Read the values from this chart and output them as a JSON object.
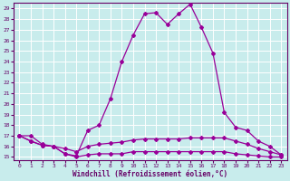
{
  "xlabel": "Windchill (Refroidissement éolien,°C)",
  "bg_color": "#c8ecec",
  "grid_color": "#ffffff",
  "line_color": "#990099",
  "xlim": [
    -0.5,
    23.5
  ],
  "ylim": [
    14.7,
    29.5
  ],
  "yticks": [
    15,
    16,
    17,
    18,
    19,
    20,
    21,
    22,
    23,
    24,
    25,
    26,
    27,
    28,
    29
  ],
  "xticks": [
    0,
    1,
    2,
    3,
    4,
    5,
    6,
    7,
    8,
    9,
    10,
    11,
    12,
    13,
    14,
    15,
    16,
    17,
    18,
    19,
    20,
    21,
    22,
    23
  ],
  "line1_x": [
    0,
    1,
    2,
    3,
    4,
    5,
    6,
    7,
    8,
    9,
    10,
    11,
    12,
    13,
    14,
    15,
    16,
    17,
    18,
    19,
    20,
    21,
    22,
    23
  ],
  "line1_y": [
    17.0,
    17.0,
    16.2,
    16.0,
    15.3,
    15.1,
    17.5,
    18.0,
    20.5,
    24.0,
    26.5,
    28.5,
    28.6,
    27.5,
    28.5,
    29.4,
    27.2,
    24.8,
    19.2,
    17.8,
    17.5,
    16.5,
    16.0,
    15.2
  ],
  "line2_x": [
    0,
    1,
    2,
    3,
    4,
    5,
    6,
    7,
    8,
    9,
    10,
    11,
    12,
    13,
    14,
    15,
    16,
    17,
    18,
    19,
    20,
    21,
    22,
    23
  ],
  "line2_y": [
    17.0,
    16.5,
    16.1,
    16.0,
    15.8,
    15.5,
    16.0,
    16.2,
    16.3,
    16.4,
    16.6,
    16.7,
    16.7,
    16.7,
    16.7,
    16.8,
    16.8,
    16.8,
    16.8,
    16.5,
    16.2,
    15.8,
    15.5,
    15.2
  ],
  "line3_x": [
    0,
    1,
    2,
    3,
    4,
    5,
    6,
    7,
    8,
    9,
    10,
    11,
    12,
    13,
    14,
    15,
    16,
    17,
    18,
    19,
    20,
    21,
    22,
    23
  ],
  "line3_y": [
    17.0,
    16.5,
    16.1,
    16.0,
    15.3,
    15.0,
    15.2,
    15.3,
    15.3,
    15.3,
    15.5,
    15.5,
    15.5,
    15.5,
    15.5,
    15.5,
    15.5,
    15.5,
    15.5,
    15.3,
    15.2,
    15.1,
    15.0,
    15.0
  ]
}
